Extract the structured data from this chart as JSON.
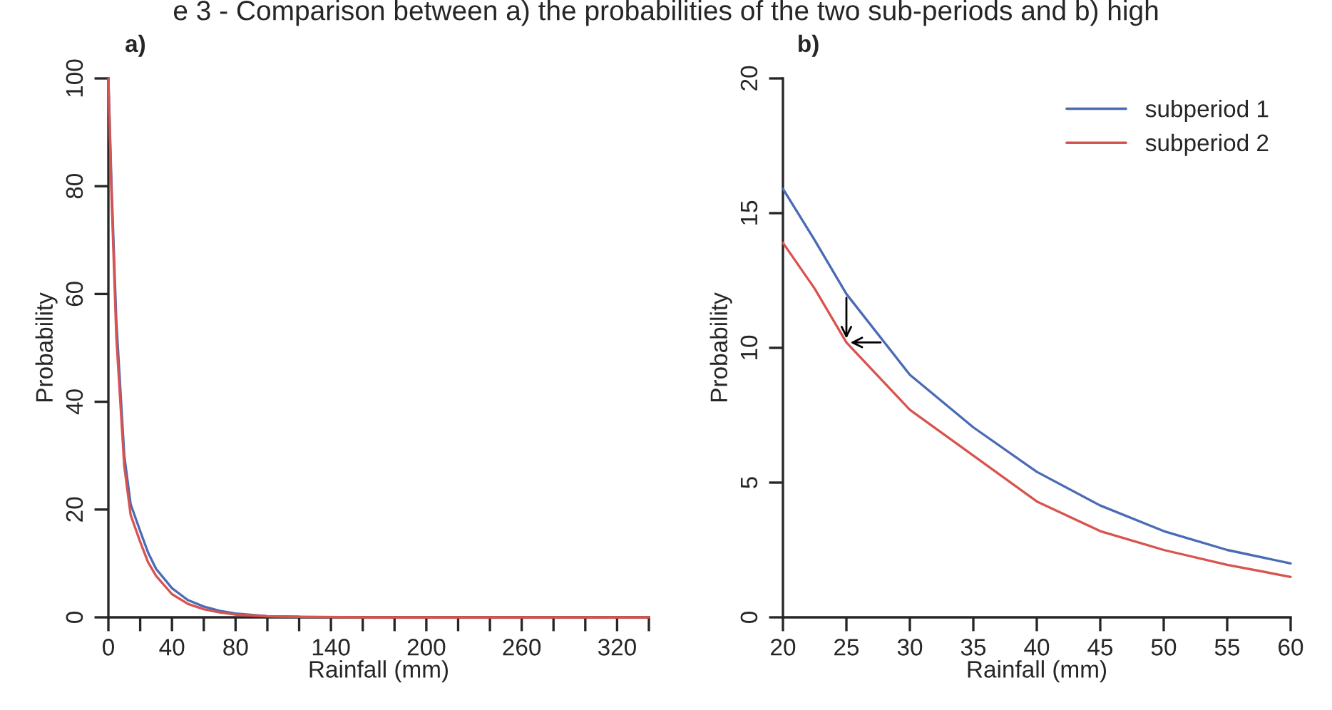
{
  "chart_data": [
    {
      "type": "line",
      "title": "e 3 - Comparison between a) the probabilities of the two sub-periods and b) high",
      "annotations": [
        "a)"
      ],
      "xlabel": "Rainfall (mm)",
      "ylabel": "Probability",
      "xlim": [
        0,
        340
      ],
      "ylim": [
        0,
        100
      ],
      "xticks": [
        0,
        {
          "value": 20,
          "label": null
        },
        40,
        {
          "value": 60,
          "label": null
        },
        80,
        {
          "value": 100,
          "label": null
        },
        {
          "value": 120,
          "label": null
        },
        140,
        {
          "value": 160,
          "label": null
        },
        {
          "value": 180,
          "label": null
        },
        200,
        {
          "value": 220,
          "label": null
        },
        {
          "value": 240,
          "label": null
        },
        260,
        {
          "value": 280,
          "label": null
        },
        {
          "value": 300,
          "label": null
        },
        320,
        {
          "value": 340,
          "label": null
        }
      ],
      "yticks": [
        0,
        20,
        40,
        60,
        80,
        100
      ],
      "grid": false,
      "legend": false,
      "x": [
        0,
        2,
        5,
        10,
        14,
        20,
        25,
        30,
        40,
        50,
        60,
        70,
        80,
        100,
        120,
        160,
        340
      ],
      "series": [
        {
          "color": "#4a6bb5",
          "values": [
            100,
            80,
            55,
            30,
            21,
            16,
            12,
            9,
            5.4,
            3.2,
            2.0,
            1.2,
            0.7,
            0.2,
            0.1,
            null,
            null
          ]
        },
        {
          "color": "#d9534f",
          "values": [
            100,
            78,
            52,
            28,
            19,
            14,
            10.2,
            7.7,
            4.3,
            2.5,
            1.5,
            0.9,
            0.5,
            0.2,
            0.1,
            0,
            0
          ]
        }
      ]
    },
    {
      "type": "line",
      "annotations": [
        "b)"
      ],
      "xlabel": "Rainfall (mm)",
      "ylabel": "Probability",
      "xlim": [
        20,
        60
      ],
      "ylim": [
        0,
        20
      ],
      "xticks": [
        20,
        25,
        30,
        35,
        40,
        45,
        50,
        55,
        60
      ],
      "yticks": [
        0,
        5,
        10,
        15,
        20
      ],
      "grid": false,
      "legend": "top right",
      "x": [
        20,
        22.5,
        25,
        30,
        35,
        40,
        45,
        50,
        55,
        60
      ],
      "series": [
        {
          "name": "subperiod 1",
          "color": "#4a6bb5",
          "values": [
            15.9,
            14.0,
            12.0,
            9.0,
            7.05,
            5.4,
            4.15,
            3.2,
            2.5,
            2.0
          ]
        },
        {
          "name": "subperiod 2",
          "color": "#d9534f",
          "values": [
            13.9,
            12.2,
            10.2,
            7.7,
            6.0,
            4.3,
            3.2,
            2.5,
            1.95,
            1.5
          ]
        }
      ]
    }
  ]
}
